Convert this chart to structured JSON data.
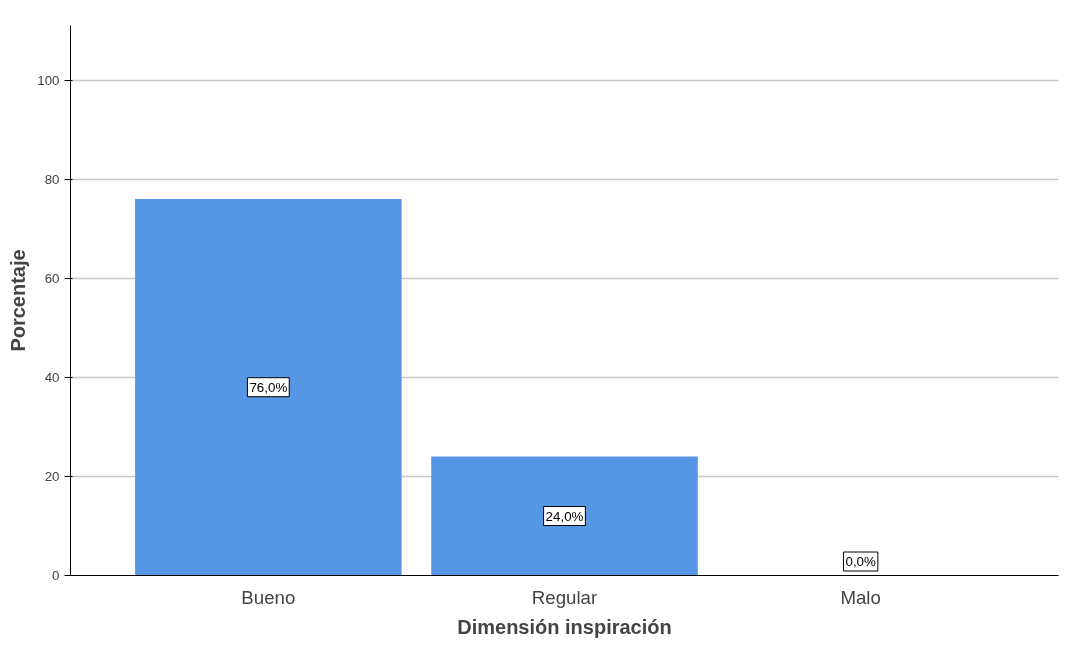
{
  "chart_data": {
    "type": "bar",
    "xlabel": "Dimensión inspiración",
    "ylabel": "Porcentaje",
    "categories": [
      "Bueno",
      "Regular",
      "Malo"
    ],
    "values": [
      76.0,
      24.0,
      0.0
    ],
    "value_labels": [
      "76,0%",
      "24,0%",
      "0,0%"
    ],
    "color": "#5596e5",
    "ylim": [
      0,
      111
    ],
    "yticks": [
      0,
      20,
      40,
      60,
      80,
      100
    ],
    "grid": "y"
  }
}
